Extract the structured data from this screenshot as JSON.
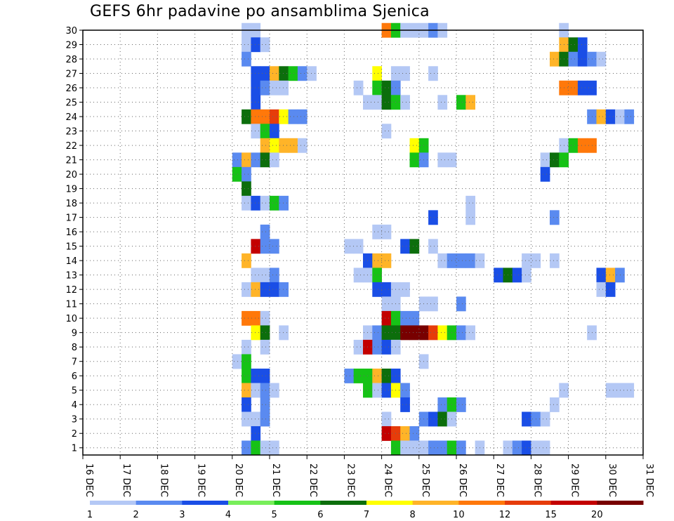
{
  "chart_data": {
    "type": "heatmap",
    "title": "GEFS 6hr padavine po ansamblima Sjenica",
    "xlabel": "",
    "ylabel": "",
    "x_ticks": [
      "16 DEC",
      "17 DEC",
      "18 DEC",
      "19 DEC",
      "20 DEC",
      "21 DEC",
      "22 DEC",
      "23 DEC",
      "24 DEC",
      "25 DEC",
      "26 DEC",
      "27 DEC",
      "28 DEC",
      "29 DEC",
      "30 DEC",
      "31 DEC"
    ],
    "y_range": [
      1,
      30
    ],
    "grid": true,
    "colorbar": {
      "labels": [
        "1",
        "2",
        "3",
        "4",
        "5",
        "6",
        "7",
        "8",
        "10",
        "12",
        "15",
        "20"
      ],
      "colors": [
        "#b4c8f5",
        "#5a8af0",
        "#1a4ee6",
        "#78ee5a",
        "#16c216",
        "#0c6e0c",
        "#ffff00",
        "#ffb428",
        "#ff780a",
        "#e63c0a",
        "#c30000",
        "#780000"
      ]
    },
    "cells": [
      [
        20.25,
        30,
        1
      ],
      [
        20.5,
        30,
        1
      ],
      [
        24.0,
        30,
        9
      ],
      [
        24.25,
        30,
        5
      ],
      [
        24.5,
        30,
        1
      ],
      [
        24.75,
        30,
        1
      ],
      [
        25.0,
        30,
        1
      ],
      [
        25.25,
        30,
        2
      ],
      [
        25.5,
        30,
        1
      ],
      [
        28.75,
        30,
        1
      ],
      [
        20.25,
        29,
        1
      ],
      [
        20.5,
        29,
        3
      ],
      [
        20.75,
        29,
        1
      ],
      [
        28.75,
        29,
        8
      ],
      [
        29.0,
        29,
        6
      ],
      [
        29.25,
        29,
        3
      ],
      [
        20.25,
        28,
        2
      ],
      [
        28.5,
        28,
        8
      ],
      [
        28.75,
        28,
        6
      ],
      [
        29.0,
        28,
        2
      ],
      [
        29.25,
        28,
        3
      ],
      [
        29.5,
        28,
        2
      ],
      [
        29.75,
        28,
        1
      ],
      [
        20.5,
        27,
        3
      ],
      [
        20.75,
        27,
        3
      ],
      [
        21.0,
        27,
        8
      ],
      [
        21.25,
        27,
        6
      ],
      [
        21.5,
        27,
        5
      ],
      [
        21.75,
        27,
        2
      ],
      [
        22.0,
        27,
        1
      ],
      [
        23.75,
        27,
        7
      ],
      [
        24.25,
        27,
        1
      ],
      [
        24.5,
        27,
        1
      ],
      [
        25.25,
        27,
        1
      ],
      [
        20.5,
        26,
        3
      ],
      [
        20.75,
        26,
        2
      ],
      [
        21.0,
        26,
        1
      ],
      [
        21.25,
        26,
        1
      ],
      [
        23.25,
        26,
        1
      ],
      [
        23.75,
        26,
        5
      ],
      [
        24.0,
        26,
        6
      ],
      [
        24.25,
        26,
        2
      ],
      [
        28.75,
        26,
        9
      ],
      [
        29.0,
        26,
        9
      ],
      [
        29.25,
        26,
        3
      ],
      [
        29.5,
        26,
        3
      ],
      [
        20.5,
        25,
        3
      ],
      [
        23.5,
        25,
        1
      ],
      [
        23.75,
        25,
        1
      ],
      [
        24.0,
        25,
        6
      ],
      [
        24.25,
        25,
        5
      ],
      [
        24.5,
        25,
        1
      ],
      [
        25.5,
        25,
        1
      ],
      [
        26.0,
        25,
        5
      ],
      [
        26.25,
        25,
        8
      ],
      [
        20.25,
        24,
        6
      ],
      [
        20.5,
        24,
        9
      ],
      [
        20.75,
        24,
        9
      ],
      [
        21.0,
        24,
        10
      ],
      [
        21.25,
        24,
        7
      ],
      [
        21.5,
        24,
        2
      ],
      [
        21.75,
        24,
        2
      ],
      [
        29.5,
        24,
        2
      ],
      [
        29.75,
        24,
        8
      ],
      [
        30.0,
        24,
        3
      ],
      [
        30.25,
        24,
        1
      ],
      [
        30.5,
        24,
        2
      ],
      [
        20.5,
        23,
        1
      ],
      [
        20.75,
        23,
        5
      ],
      [
        21.0,
        23,
        3
      ],
      [
        24.0,
        23,
        1
      ],
      [
        20.75,
        22,
        8
      ],
      [
        21.0,
        22,
        7
      ],
      [
        21.25,
        22,
        8
      ],
      [
        21.5,
        22,
        8
      ],
      [
        21.75,
        22,
        1
      ],
      [
        24.75,
        22,
        7
      ],
      [
        25.0,
        22,
        5
      ],
      [
        28.75,
        22,
        1
      ],
      [
        29.0,
        22,
        5
      ],
      [
        29.25,
        22,
        9
      ],
      [
        29.5,
        22,
        9
      ],
      [
        20.0,
        21,
        2
      ],
      [
        20.25,
        21,
        8
      ],
      [
        20.5,
        21,
        2
      ],
      [
        20.75,
        21,
        6
      ],
      [
        21.0,
        21,
        1
      ],
      [
        24.75,
        21,
        5
      ],
      [
        25.0,
        21,
        2
      ],
      [
        25.5,
        21,
        1
      ],
      [
        25.75,
        21,
        1
      ],
      [
        28.25,
        21,
        1
      ],
      [
        28.5,
        21,
        6
      ],
      [
        28.75,
        21,
        5
      ],
      [
        20.0,
        20,
        5
      ],
      [
        20.25,
        20,
        2
      ],
      [
        28.25,
        20,
        3
      ],
      [
        20.25,
        19,
        6
      ],
      [
        20.25,
        18,
        1
      ],
      [
        20.5,
        18,
        3
      ],
      [
        20.75,
        18,
        1
      ],
      [
        21.0,
        18,
        5
      ],
      [
        21.25,
        18,
        2
      ],
      [
        26.25,
        18,
        1
      ],
      [
        25.25,
        17,
        3
      ],
      [
        26.25,
        17,
        1
      ],
      [
        28.5,
        17,
        2
      ],
      [
        20.75,
        16,
        2
      ],
      [
        23.75,
        16,
        1
      ],
      [
        24.0,
        16,
        1
      ],
      [
        20.5,
        15,
        11
      ],
      [
        20.75,
        15,
        2
      ],
      [
        21.0,
        15,
        2
      ],
      [
        23.0,
        15,
        1
      ],
      [
        23.25,
        15,
        1
      ],
      [
        24.5,
        15,
        3
      ],
      [
        24.75,
        15,
        6
      ],
      [
        25.25,
        15,
        1
      ],
      [
        20.25,
        14,
        8
      ],
      [
        23.5,
        14,
        3
      ],
      [
        23.75,
        14,
        8
      ],
      [
        24.0,
        14,
        8
      ],
      [
        25.5,
        14,
        1
      ],
      [
        25.75,
        14,
        2
      ],
      [
        26.0,
        14,
        2
      ],
      [
        26.25,
        14,
        2
      ],
      [
        26.5,
        14,
        1
      ],
      [
        27.75,
        14,
        1
      ],
      [
        28.0,
        14,
        1
      ],
      [
        28.5,
        14,
        1
      ],
      [
        20.5,
        13,
        1
      ],
      [
        20.75,
        13,
        1
      ],
      [
        21.0,
        13,
        2
      ],
      [
        23.25,
        13,
        1
      ],
      [
        23.5,
        13,
        1
      ],
      [
        23.75,
        13,
        5
      ],
      [
        27.0,
        13,
        3
      ],
      [
        27.25,
        13,
        6
      ],
      [
        27.5,
        13,
        3
      ],
      [
        27.75,
        13,
        1
      ],
      [
        29.75,
        13,
        3
      ],
      [
        30.0,
        13,
        8
      ],
      [
        30.25,
        13,
        2
      ],
      [
        20.25,
        12,
        1
      ],
      [
        20.5,
        12,
        8
      ],
      [
        20.75,
        12,
        3
      ],
      [
        21.0,
        12,
        3
      ],
      [
        21.25,
        12,
        2
      ],
      [
        23.75,
        12,
        3
      ],
      [
        24.0,
        12,
        3
      ],
      [
        24.25,
        12,
        1
      ],
      [
        24.5,
        12,
        1
      ],
      [
        29.75,
        12,
        1
      ],
      [
        30.0,
        12,
        3
      ],
      [
        24.0,
        11,
        1
      ],
      [
        24.25,
        11,
        1
      ],
      [
        25.0,
        11,
        1
      ],
      [
        25.25,
        11,
        1
      ],
      [
        26.0,
        11,
        2
      ],
      [
        20.25,
        10,
        9
      ],
      [
        20.5,
        10,
        9
      ],
      [
        20.75,
        10,
        1
      ],
      [
        24.0,
        10,
        11
      ],
      [
        24.25,
        10,
        5
      ],
      [
        24.5,
        10,
        2
      ],
      [
        24.75,
        10,
        2
      ],
      [
        20.5,
        9,
        7
      ],
      [
        20.75,
        9,
        6
      ],
      [
        21.25,
        9,
        1
      ],
      [
        23.5,
        9,
        1
      ],
      [
        23.75,
        9,
        2
      ],
      [
        24.0,
        9,
        6
      ],
      [
        24.25,
        9,
        6
      ],
      [
        24.5,
        9,
        12
      ],
      [
        24.75,
        9,
        12
      ],
      [
        25.0,
        9,
        12
      ],
      [
        25.25,
        9,
        10
      ],
      [
        25.5,
        9,
        7
      ],
      [
        25.75,
        9,
        5
      ],
      [
        26.0,
        9,
        2
      ],
      [
        26.25,
        9,
        1
      ],
      [
        29.5,
        9,
        1
      ],
      [
        20.25,
        8,
        1
      ],
      [
        20.75,
        8,
        1
      ],
      [
        23.25,
        8,
        1
      ],
      [
        23.5,
        8,
        11
      ],
      [
        23.75,
        8,
        2
      ],
      [
        24.0,
        8,
        3
      ],
      [
        24.25,
        8,
        1
      ],
      [
        20.0,
        7,
        1
      ],
      [
        20.25,
        7,
        5
      ],
      [
        25.0,
        7,
        1
      ],
      [
        20.25,
        6,
        5
      ],
      [
        20.5,
        6,
        3
      ],
      [
        20.75,
        6,
        3
      ],
      [
        23.0,
        6,
        2
      ],
      [
        23.25,
        6,
        5
      ],
      [
        23.5,
        6,
        5
      ],
      [
        23.75,
        6,
        8
      ],
      [
        24.0,
        6,
        6
      ],
      [
        24.25,
        6,
        3
      ],
      [
        20.25,
        5,
        8
      ],
      [
        20.5,
        5,
        1
      ],
      [
        20.75,
        5,
        2
      ],
      [
        21.0,
        5,
        1
      ],
      [
        23.5,
        5,
        5
      ],
      [
        23.75,
        5,
        1
      ],
      [
        24.0,
        5,
        3
      ],
      [
        24.25,
        5,
        7
      ],
      [
        24.5,
        5,
        2
      ],
      [
        28.75,
        5,
        1
      ],
      [
        30.0,
        5,
        1
      ],
      [
        30.25,
        5,
        1
      ],
      [
        30.5,
        5,
        1
      ],
      [
        20.25,
        4,
        3
      ],
      [
        20.75,
        4,
        2
      ],
      [
        24.5,
        4,
        3
      ],
      [
        25.5,
        4,
        2
      ],
      [
        25.75,
        4,
        5
      ],
      [
        26.0,
        4,
        2
      ],
      [
        28.5,
        4,
        1
      ],
      [
        20.25,
        3,
        1
      ],
      [
        20.5,
        3,
        1
      ],
      [
        20.75,
        3,
        2
      ],
      [
        24.0,
        3,
        1
      ],
      [
        25.0,
        3,
        2
      ],
      [
        25.25,
        3,
        3
      ],
      [
        25.5,
        3,
        6
      ],
      [
        25.75,
        3,
        1
      ],
      [
        27.75,
        3,
        3
      ],
      [
        28.0,
        3,
        2
      ],
      [
        28.25,
        3,
        1
      ],
      [
        20.5,
        2,
        3
      ],
      [
        24.0,
        2,
        11
      ],
      [
        24.25,
        2,
        10
      ],
      [
        24.5,
        2,
        8
      ],
      [
        24.75,
        2,
        2
      ],
      [
        20.25,
        1,
        2
      ],
      [
        20.5,
        1,
        5
      ],
      [
        20.75,
        1,
        1
      ],
      [
        21.0,
        1,
        1
      ],
      [
        24.25,
        1,
        5
      ],
      [
        24.5,
        1,
        1
      ],
      [
        24.75,
        1,
        1
      ],
      [
        25.0,
        1,
        1
      ],
      [
        25.25,
        1,
        2
      ],
      [
        25.5,
        1,
        2
      ],
      [
        25.75,
        1,
        5
      ],
      [
        26.0,
        1,
        2
      ],
      [
        26.5,
        1,
        1
      ],
      [
        27.25,
        1,
        1
      ],
      [
        27.5,
        1,
        2
      ],
      [
        27.75,
        1,
        3
      ],
      [
        28.0,
        1,
        1
      ],
      [
        28.25,
        1,
        1
      ]
    ]
  }
}
